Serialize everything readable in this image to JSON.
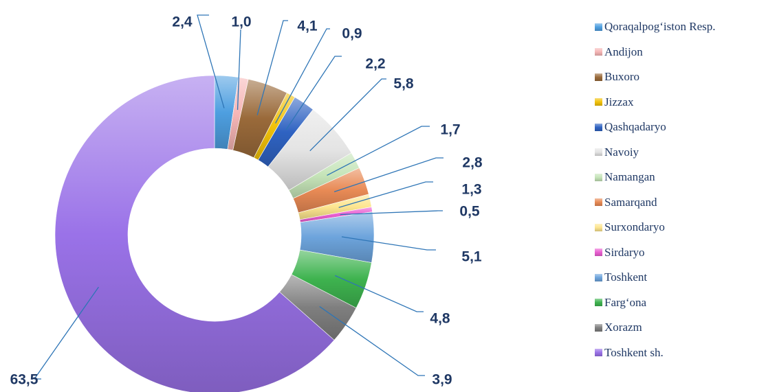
{
  "chart_data": {
    "type": "pie",
    "title": "",
    "categories": [
      "Qoraqalpog‘iston Resp.",
      "Andijon",
      "Buxoro",
      "Jizzax",
      "Qashqadaryo",
      "Navoiy",
      "Namangan",
      "Samarqand",
      "Surxondaryo",
      "Sirdaryo",
      "Toshkent",
      "Farg‘ona",
      "Xorazm",
      "Toshkent sh."
    ],
    "values": [
      2.4,
      1.0,
      4.1,
      0.9,
      2.2,
      5.8,
      1.7,
      2.8,
      1.3,
      0.5,
      5.1,
      4.8,
      3.9,
      63.5
    ],
    "value_labels": [
      "2,4",
      "1,0",
      "4,1",
      "0,9",
      "2,2",
      "5,8",
      "1,7",
      "2,8",
      "1,3",
      "0,5",
      "5,1",
      "4,8",
      "3,9",
      "63,5"
    ],
    "colors": [
      "#4e9fe0",
      "#f6b6b6",
      "#9a6a3a",
      "#f2c20a",
      "#2f63c2",
      "#e4e4e4",
      "#c5e4b8",
      "#e88a55",
      "#fde58f",
      "#ea5fd2",
      "#6da4dc",
      "#3eb34f",
      "#7f7f7f",
      "#9a72e8"
    ],
    "donut": true,
    "legend_position": "right",
    "legend": [
      "Qoraqalpog‘iston Resp.",
      "Andijon",
      "Buxoro",
      "Jizzax",
      "Qashqadaryo",
      "Navoiy",
      "Namangan",
      "Samarqand",
      "Surxondaryo",
      "Sirdaryo",
      "Toshkent",
      "Farg‘ona",
      "Xorazm",
      "Toshkent sh."
    ]
  }
}
